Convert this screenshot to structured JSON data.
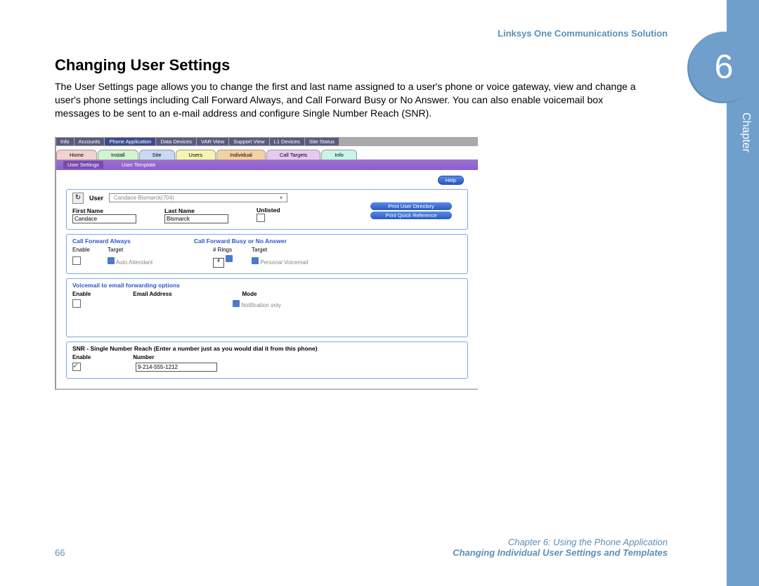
{
  "doc": {
    "product": "Linksys One Communications Solution",
    "chapter_num": "6",
    "chapter_label": "Chapter",
    "heading": "Changing User Settings",
    "body": "The User Settings page allows you to change the first and last name assigned to a user's phone or voice gateway, view and change a user's phone settings including Call Forward Always, and Call Forward Busy or No Answer. You can also enable voicemail box messages to be sent to an e-mail address and configure Single Number Reach (SNR).",
    "page_num": "66",
    "footer1": "Chapter 6: Using the Phone Application",
    "footer2": "Changing Individual User Settings and Templates"
  },
  "top_tabs": [
    "Info",
    "Accounts",
    "Phone Application",
    "Data Devices",
    "VAR View",
    "Support View",
    "L1 Devices",
    "Site Status"
  ],
  "top_active": 2,
  "color_tabs": [
    {
      "label": "Home",
      "bg": "#f5d0d0"
    },
    {
      "label": "Install",
      "bg": "#d0f5d0"
    },
    {
      "label": "Site",
      "bg": "#c8d8f5"
    },
    {
      "label": "Users",
      "bg": "#f5f5b0"
    },
    {
      "label": "Individual",
      "bg": "#f5d0a0"
    },
    {
      "label": "Call Targets",
      "bg": "#e8c8f5"
    },
    {
      "label": "Info",
      "bg": "#c8f5e8"
    }
  ],
  "subtabs": [
    "User Settings",
    "User Template"
  ],
  "subtab_active": 0,
  "help": "Help",
  "user": {
    "label": "User",
    "selected": "Candace Bismarck(704)",
    "first_label": "First Name",
    "first_value": "Candace",
    "last_label": "Last Name",
    "last_value": "Bismarck",
    "unlisted_label": "Unlisted",
    "btn1": "Print User Directory",
    "btn2": "Print Quick Reference"
  },
  "cf": {
    "always_title": "Call Forward Always",
    "busy_title": "Call Forward Busy or No Answer",
    "enable": "Enable",
    "target": "Target",
    "rings_label": "# Rings",
    "rings_val": "4",
    "auto": "Auto Attendant",
    "voicemail": "Personal Voicemail"
  },
  "vm": {
    "title": "Voicemail to email forwarding options",
    "enable": "Enable",
    "email": "Email Address",
    "mode": "Mode",
    "mode_val": "Notification only"
  },
  "snr": {
    "title": "SNR - Single Number Reach (Enter a number just as you would dial it from this phone)",
    "enable": "Enable",
    "number": "Number",
    "number_val": "9-214-555-1212"
  }
}
